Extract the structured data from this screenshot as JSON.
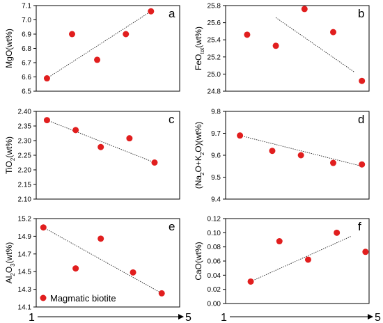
{
  "chart_data": [
    {
      "type": "scatter",
      "letter": "a",
      "ylabel": "MgO(wt%)",
      "ylim": [
        6.5,
        7.1
      ],
      "yticks": [
        "6.5",
        "6.6",
        "6.7",
        "6.8",
        "6.9",
        "7.0",
        "7.1"
      ],
      "xlim": [
        1,
        5
      ],
      "points": [
        [
          1.3,
          6.59
        ],
        [
          2.0,
          6.9
        ],
        [
          2.7,
          6.72
        ],
        [
          3.5,
          6.9
        ],
        [
          4.2,
          7.06
        ]
      ],
      "trend": [
        [
          1.3,
          6.59
        ],
        [
          4.2,
          7.06
        ]
      ]
    },
    {
      "type": "scatter",
      "letter": "b",
      "ylabel": [
        "FeO",
        "tot",
        "(wt%)"
      ],
      "ylim": [
        24.8,
        25.8
      ],
      "yticks": [
        "24.8",
        "25.0",
        "25.2",
        "25.4",
        "25.6",
        "25.8"
      ],
      "xlim": [
        1,
        5
      ],
      "points": [
        [
          1.6,
          25.46
        ],
        [
          2.4,
          25.33
        ],
        [
          3.2,
          25.76
        ],
        [
          4.0,
          25.49
        ],
        [
          4.8,
          24.92
        ]
      ],
      "trend": [
        [
          2.4,
          25.66
        ],
        [
          4.6,
          25.02
        ]
      ]
    },
    {
      "type": "scatter",
      "letter": "c",
      "ylabel": [
        "TiO",
        "2",
        "(wt%)"
      ],
      "ylim": [
        2.1,
        2.4
      ],
      "yticks": [
        "2.10",
        "2.15",
        "2.20",
        "2.25",
        "2.30",
        "2.35",
        "2.40"
      ],
      "xlim": [
        1,
        5
      ],
      "points": [
        [
          1.3,
          2.37
        ],
        [
          2.1,
          2.336
        ],
        [
          2.8,
          2.278
        ],
        [
          3.6,
          2.308
        ],
        [
          4.3,
          2.225
        ]
      ],
      "trend": [
        [
          1.3,
          2.37
        ],
        [
          4.3,
          2.225
        ]
      ]
    },
    {
      "type": "scatter",
      "letter": "d",
      "ylabel": [
        "(Na",
        "2",
        "O+K",
        "2",
        "O)(wt%)"
      ],
      "ylim": [
        9.4,
        9.8
      ],
      "yticks": [
        "9.4",
        "9.5",
        "9.6",
        "9.7",
        "9.8"
      ],
      "xlim": [
        1,
        5
      ],
      "points": [
        [
          1.4,
          9.69
        ],
        [
          2.3,
          9.62
        ],
        [
          3.1,
          9.6
        ],
        [
          4.0,
          9.565
        ],
        [
          4.8,
          9.558
        ]
      ],
      "trend": [
        [
          1.4,
          9.69
        ],
        [
          4.8,
          9.55
        ]
      ]
    },
    {
      "type": "scatter",
      "letter": "e",
      "ylabel": [
        "Al",
        "2",
        "O",
        "3",
        "(wt%)"
      ],
      "ylim": [
        14.1,
        15.2
      ],
      "yticks": [
        "14.1",
        "14.3",
        "14.5",
        "14.7",
        "14.9",
        "15.2"
      ],
      "xlim": [
        1,
        5
      ],
      "points": [
        [
          1.2,
          15.09
        ],
        [
          2.1,
          14.58
        ],
        [
          2.8,
          14.95
        ],
        [
          3.7,
          14.53
        ],
        [
          4.5,
          14.27
        ]
      ],
      "trend": [
        [
          1.2,
          15.09
        ],
        [
          4.5,
          14.27
        ]
      ]
    },
    {
      "type": "scatter",
      "letter": "f",
      "ylabel": "CaO(wt%)",
      "ylim": [
        0.0,
        0.12
      ],
      "yticks": [
        "0.00",
        "0.02",
        "0.04",
        "0.06",
        "0.08",
        "0.10",
        "0.12"
      ],
      "xlim": [
        1,
        5
      ],
      "points": [
        [
          1.7,
          0.031
        ],
        [
          2.5,
          0.088
        ],
        [
          3.3,
          0.062
        ],
        [
          4.1,
          0.1
        ],
        [
          4.9,
          0.073
        ]
      ],
      "trend": [
        [
          1.7,
          0.031
        ],
        [
          4.5,
          0.095
        ]
      ]
    }
  ],
  "legend": {
    "label": "Magmatic biotite",
    "color": "#e11e1e"
  },
  "x_axis": {
    "start_label": "1",
    "end_label": "5"
  }
}
